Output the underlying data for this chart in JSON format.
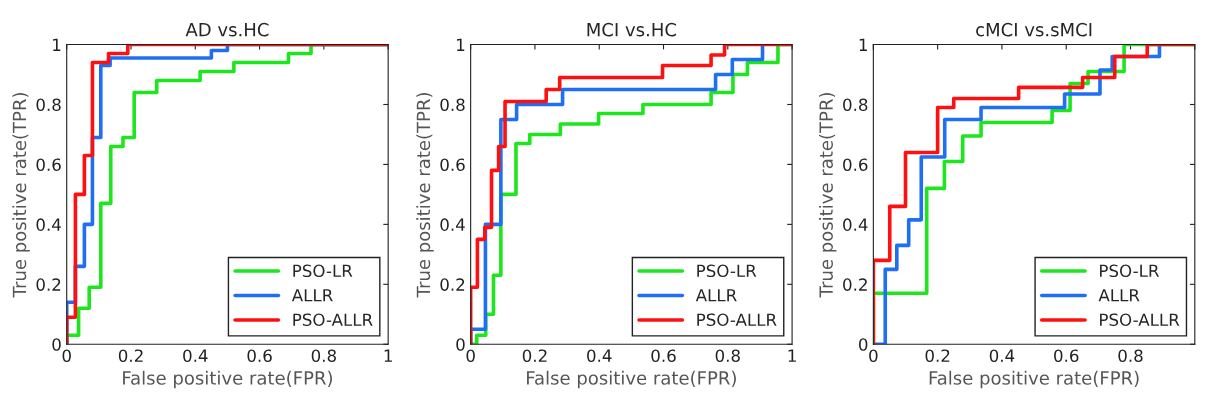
{
  "chart_data": [
    {
      "type": "step",
      "title": "AD vs.HC",
      "xlabel": "False positive rate(FPR)",
      "ylabel": "True positive rate(TPR)",
      "xlim": [
        0,
        1
      ],
      "ylim": [
        0,
        1
      ],
      "xticks": [
        0,
        0.2,
        0.4,
        0.6,
        0.8,
        1
      ],
      "yticks": [
        0,
        0.2,
        0.4,
        0.6,
        0.8,
        1
      ],
      "grid": false,
      "legend": "bottom right",
      "series": [
        {
          "name": "PSO-LR",
          "color": "#1ee61e",
          "x": [
            0,
            0,
            0.037,
            0.07,
            0.106,
            0.137,
            0.175,
            0.21,
            0.28,
            0.415,
            0.52,
            0.69,
            0.76,
            1
          ],
          "values": [
            0,
            0.03,
            0.12,
            0.19,
            0.47,
            0.66,
            0.69,
            0.84,
            0.88,
            0.91,
            0.94,
            0.97,
            1,
            1
          ]
        },
        {
          "name": "ALLR",
          "color": "#1f6ff5",
          "x": [
            0,
            0,
            0.027,
            0.055,
            0.08,
            0.106,
            0.135,
            0.45,
            0.5,
            1
          ],
          "values": [
            0,
            0.14,
            0.26,
            0.4,
            0.69,
            0.93,
            0.955,
            0.98,
            1,
            1
          ]
        },
        {
          "name": "PSO-ALLR",
          "color": "#ff1010",
          "x": [
            0,
            0,
            0.027,
            0.055,
            0.08,
            0.13,
            0.19,
            1
          ],
          "values": [
            0,
            0.09,
            0.5,
            0.63,
            0.94,
            0.97,
            1,
            1
          ]
        }
      ]
    },
    {
      "type": "step",
      "title": "MCI vs.HC",
      "xlabel": "False positive rate(FPR)",
      "ylabel": "True positive rate(TPR)",
      "xlim": [
        0,
        1
      ],
      "ylim": [
        0,
        1
      ],
      "xticks": [
        0,
        0.2,
        0.4,
        0.6,
        0.8,
        1
      ],
      "yticks": [
        0,
        0.2,
        0.4,
        0.6,
        0.8,
        1
      ],
      "grid": false,
      "legend": "bottom right",
      "series": [
        {
          "name": "PSO-LR",
          "color": "#1ee61e",
          "x": [
            0,
            0.019,
            0.047,
            0.071,
            0.094,
            0.141,
            0.184,
            0.279,
            0.398,
            0.536,
            0.748,
            0.816,
            0.861,
            0.956,
            1
          ],
          "values": [
            0,
            0.03,
            0.1,
            0.23,
            0.5,
            0.67,
            0.7,
            0.735,
            0.77,
            0.8,
            0.84,
            0.9,
            0.94,
            1,
            1
          ]
        },
        {
          "name": "ALLR",
          "color": "#1f6ff5",
          "x": [
            0,
            0,
            0.046,
            0.094,
            0.143,
            0.286,
            0.762,
            0.814,
            0.908
          ],
          "values": [
            0,
            0.05,
            0.4,
            0.75,
            0.8,
            0.85,
            0.9,
            0.95,
            1
          ]
        },
        {
          "name": "PSO-ALLR",
          "color": "#ff1010",
          "x": [
            0,
            0,
            0.021,
            0.044,
            0.065,
            0.087,
            0.107,
            0.235,
            0.277,
            0.597,
            0.748,
            0.79,
            1
          ],
          "values": [
            0,
            0.19,
            0.35,
            0.39,
            0.58,
            0.66,
            0.81,
            0.85,
            0.89,
            0.93,
            0.965,
            1,
            1
          ]
        }
      ]
    },
    {
      "type": "step",
      "title": "cMCI vs.sMCI",
      "xlabel": "False positive rate(FPR)",
      "ylabel": "True positive rate(TPR)",
      "xlim": [
        0,
        1
      ],
      "ylim": [
        0,
        1
      ],
      "xticks": [
        0,
        0.2,
        0.4,
        0.6,
        0.8,
        {
          "value": 1,
          "label": null
        }
      ],
      "yticks": [
        0,
        0.2,
        0.4,
        0.6,
        0.8,
        1
      ],
      "grid": false,
      "legend": "bottom right",
      "series": [
        {
          "name": "PSO-LR",
          "color": "#1ee61e",
          "x": [
            0,
            0,
            0.166,
            0.221,
            0.278,
            0.335,
            0.556,
            0.612,
            0.668,
            0.78,
            1
          ],
          "values": [
            0,
            0.17,
            0.52,
            0.61,
            0.695,
            0.74,
            0.78,
            0.87,
            0.91,
            1,
            1
          ]
        },
        {
          "name": "ALLR",
          "color": "#1f6ff5",
          "x": [
            0,
            0.037,
            0.073,
            0.11,
            0.149,
            0.222,
            0.335,
            0.595,
            0.705,
            0.743,
            0.89
          ],
          "values": [
            0,
            0.25,
            0.33,
            0.415,
            0.625,
            0.75,
            0.79,
            0.835,
            0.915,
            0.96,
            1
          ]
        },
        {
          "name": "PSO-ALLR",
          "color": "#ff1010",
          "x": [
            0,
            0,
            0.051,
            0.1,
            0.2,
            0.25,
            0.452,
            0.651,
            0.751,
            0.852,
            1
          ],
          "values": [
            0,
            0.28,
            0.46,
            0.64,
            0.79,
            0.82,
            0.857,
            0.89,
            0.96,
            1,
            1
          ]
        }
      ]
    }
  ]
}
